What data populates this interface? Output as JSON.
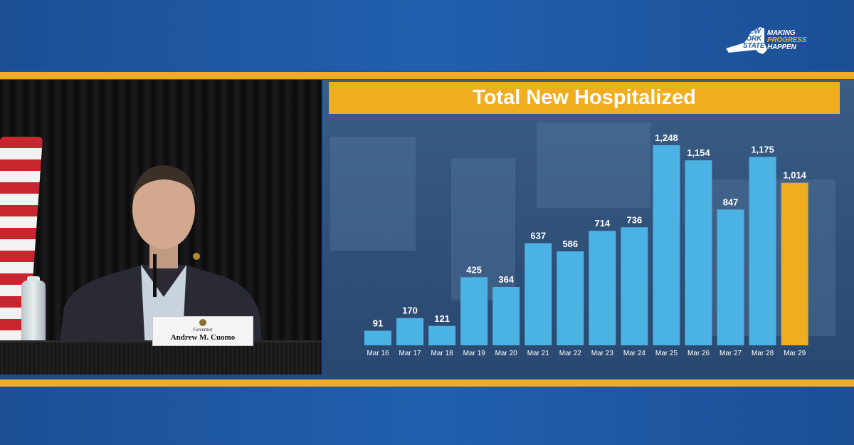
{
  "branding": {
    "logo_lines": [
      "NEW",
      "YORK",
      "STATE"
    ],
    "slogan_lines": [
      "MAKING",
      "PROGRESS",
      "HAPPEN"
    ],
    "logo_colors": {
      "white": "#ffffff",
      "gold": "#f0ad20"
    }
  },
  "theme": {
    "gold": "#f0ad20",
    "blue": "#1d5aa6",
    "bar_blue": "#4ab3e3",
    "bar_highlight": "#f0ad20"
  },
  "nameplate": {
    "title": "Governor",
    "name": "Andrew M. Cuomo"
  },
  "chart_data": {
    "type": "bar",
    "title": "Total New Hospitalized",
    "categories": [
      "Mar 16",
      "Mar 17",
      "Mar 18",
      "Mar 19",
      "Mar 20",
      "Mar 21",
      "Mar 22",
      "Mar 23",
      "Mar 24",
      "Mar 25",
      "Mar 26",
      "Mar 27",
      "Mar 28",
      "Mar 29"
    ],
    "values": [
      91,
      170,
      121,
      425,
      364,
      637,
      586,
      714,
      736,
      1248,
      1154,
      847,
      1175,
      1014
    ],
    "value_labels": [
      "91",
      "170",
      "121",
      "425",
      "364",
      "637",
      "586",
      "714",
      "736",
      "1,248",
      "1,154",
      "847",
      "1,175",
      "1,014"
    ],
    "highlight_index": 13,
    "xlabel": "",
    "ylabel": "",
    "ylim": [
      0,
      1248
    ],
    "grid": false,
    "legend": "none"
  }
}
